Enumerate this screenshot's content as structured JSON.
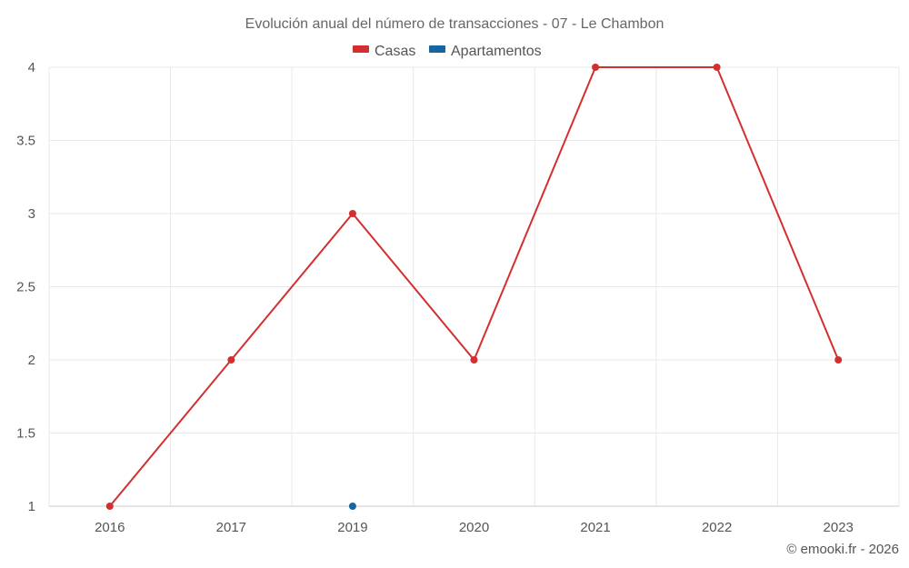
{
  "chart_data": {
    "type": "line",
    "title": "Evolución anual del número de transacciones - 07 - Le Chambon",
    "xlabel": "",
    "ylabel": "",
    "categories": [
      "2016",
      "2017",
      "2019",
      "2020",
      "2021",
      "2022",
      "2023"
    ],
    "y_ticks": [
      "1",
      "1.5",
      "2",
      "2.5",
      "3",
      "3.5",
      "4"
    ],
    "ylim": [
      1,
      4
    ],
    "grid": true,
    "legend_position": "top-center",
    "series": [
      {
        "name": "Casas",
        "color": "#d32f2f",
        "values": [
          1,
          2,
          3,
          2,
          4,
          4,
          2
        ]
      },
      {
        "name": "Apartamentos",
        "color": "#1565a0",
        "values": [
          null,
          null,
          1,
          null,
          null,
          null,
          null
        ]
      }
    ]
  },
  "credit": "© emooki.fr - 2026"
}
